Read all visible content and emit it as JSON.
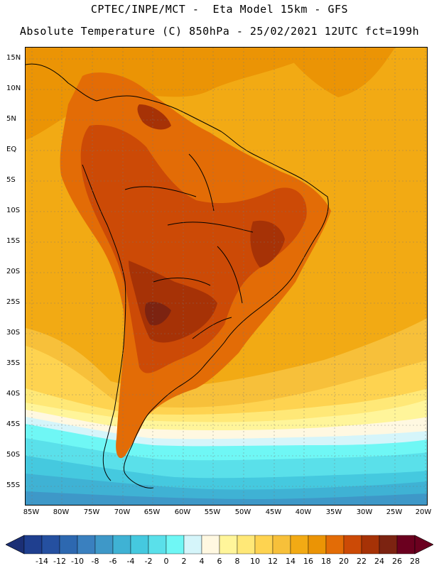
{
  "header": {
    "line1": "CPTEC/INPE/MCT -  Eta Model 15km - GFS",
    "line2": "Absolute Temperature (C) 850hPa - 25/02/2021 12UTC fct=199h"
  },
  "axes": {
    "lat_labels": [
      "15N",
      "10N",
      "5N",
      "EQ",
      "5S",
      "10S",
      "15S",
      "20S",
      "25S",
      "30S",
      "35S",
      "40S",
      "45S",
      "50S",
      "55S"
    ],
    "lon_labels": [
      "85W",
      "80W",
      "75W",
      "70W",
      "65W",
      "60W",
      "55W",
      "50W",
      "45W",
      "40W",
      "35W",
      "30W",
      "25W",
      "20W"
    ]
  },
  "legend": {
    "labels": [
      "-14",
      "-12",
      "-10",
      "-8",
      "-6",
      "-4",
      "-2",
      "0",
      "2",
      "4",
      "6",
      "8",
      "10",
      "12",
      "14",
      "16",
      "18",
      "20",
      "22",
      "24",
      "26",
      "28"
    ],
    "colors": [
      "#1f3f8f",
      "#2550a0",
      "#2d68b0",
      "#3a80bf",
      "#3e98c8",
      "#3fb2d4",
      "#45c9df",
      "#5ae0ea",
      "#6ff7f5",
      "#d5f5fa",
      "#fff8e1",
      "#fff59a",
      "#ffe877",
      "#fed350",
      "#f7c03a",
      "#f2aa14",
      "#eb9405",
      "#e36c06",
      "#cc4a06",
      "#a63206",
      "#7c2311",
      "#6b001f"
    ],
    "low_arrow_color": "#1b2f75",
    "high_arrow_color": "#6b001f"
  },
  "map": {
    "ocean_color": "#f2aa14",
    "warm_color": "#eb9405",
    "land_color": "#e36c06",
    "hot_color": "#cc4a06",
    "hottest_color": "#a63206",
    "peak_color": "#7c2311"
  }
}
